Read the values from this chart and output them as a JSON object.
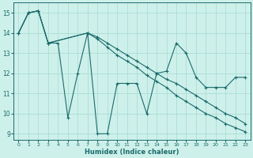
{
  "title": "",
  "xlabel": "Humidex (Indice chaleur)",
  "xlim": [
    -0.5,
    23.5
  ],
  "ylim": [
    8.7,
    15.5
  ],
  "yticks": [
    9,
    10,
    11,
    12,
    13,
    14,
    15
  ],
  "xticks": [
    0,
    1,
    2,
    3,
    4,
    5,
    6,
    7,
    8,
    9,
    10,
    11,
    12,
    13,
    14,
    15,
    16,
    17,
    18,
    19,
    20,
    21,
    22,
    23
  ],
  "line_color": "#1a6b6b",
  "bg_color": "#cef0ea",
  "grid_color": "#aaddd6",
  "series": [
    {
      "x": [
        0,
        1,
        2,
        3,
        4,
        5,
        6,
        7,
        8,
        9,
        10,
        11,
        12,
        13,
        14,
        15,
        16,
        17,
        18,
        19,
        20,
        21,
        22,
        23
      ],
      "y": [
        14.0,
        15.0,
        15.1,
        13.5,
        13.5,
        9.8,
        12.0,
        14.0,
        9.0,
        9.0,
        11.5,
        11.5,
        11.5,
        10.0,
        12.0,
        12.1,
        13.5,
        13.0,
        11.8,
        11.3,
        11.3,
        11.3,
        11.8,
        11.8
      ]
    },
    {
      "x": [
        0,
        1,
        2,
        3,
        7,
        8,
        9,
        10,
        11,
        12,
        13,
        14,
        15,
        16,
        17,
        18,
        19,
        20,
        21,
        22,
        23
      ],
      "y": [
        14.0,
        15.0,
        15.1,
        13.5,
        14.0,
        13.7,
        13.3,
        12.9,
        12.6,
        12.3,
        11.9,
        11.6,
        11.3,
        10.9,
        10.6,
        10.3,
        10.0,
        9.8,
        9.5,
        9.3,
        9.1
      ]
    },
    {
      "x": [
        0,
        1,
        2,
        3,
        7,
        8,
        9,
        10,
        11,
        12,
        13,
        14,
        15,
        16,
        17,
        18,
        19,
        20,
        21,
        22,
        23
      ],
      "y": [
        14.0,
        15.0,
        15.1,
        13.5,
        14.0,
        13.8,
        13.5,
        13.2,
        12.9,
        12.6,
        12.3,
        12.0,
        11.7,
        11.5,
        11.2,
        10.9,
        10.6,
        10.3,
        10.0,
        9.8,
        9.5
      ]
    }
  ]
}
